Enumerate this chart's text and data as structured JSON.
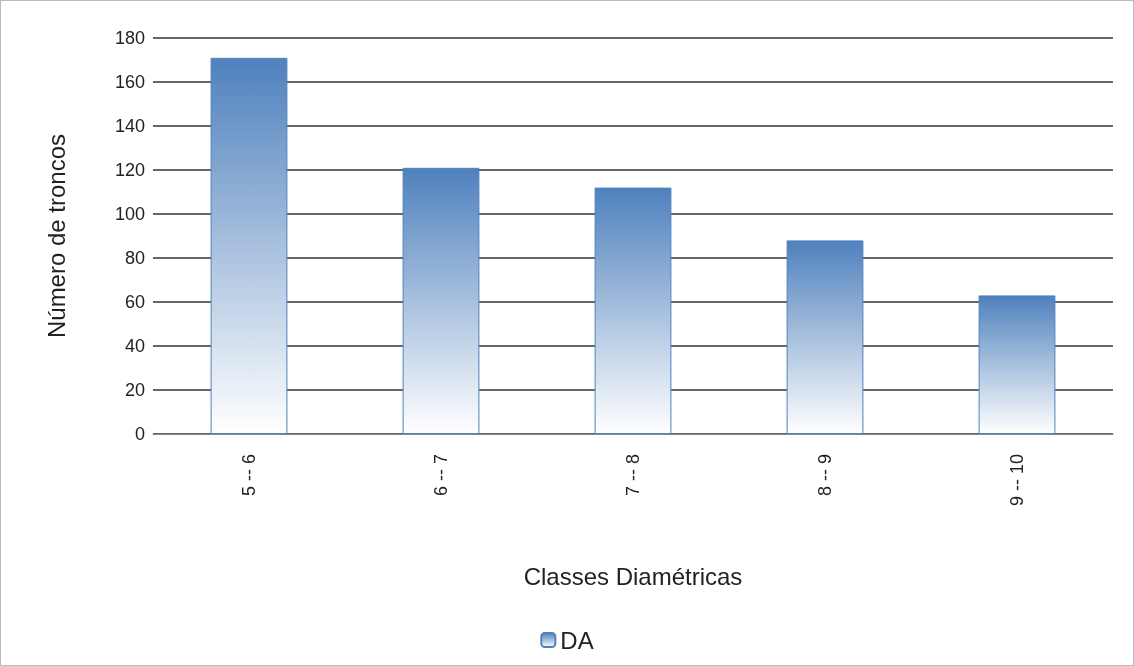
{
  "chart_data": {
    "type": "bar",
    "xlabel": "Classes Diamétricas",
    "ylabel": "Número de troncos",
    "categories": [
      "5 -- 6",
      "6 -- 7",
      "7 -- 8",
      "8 -- 9",
      "9 -- 10"
    ],
    "series": [
      {
        "name": "DA",
        "color": "#4f81bd",
        "values": [
          171,
          121,
          112,
          88,
          63
        ]
      }
    ],
    "ylim": [
      0,
      180
    ],
    "yticks": [
      0,
      20,
      40,
      60,
      80,
      100,
      120,
      140,
      160,
      180
    ],
    "grid": "y",
    "legend": "bottom"
  }
}
